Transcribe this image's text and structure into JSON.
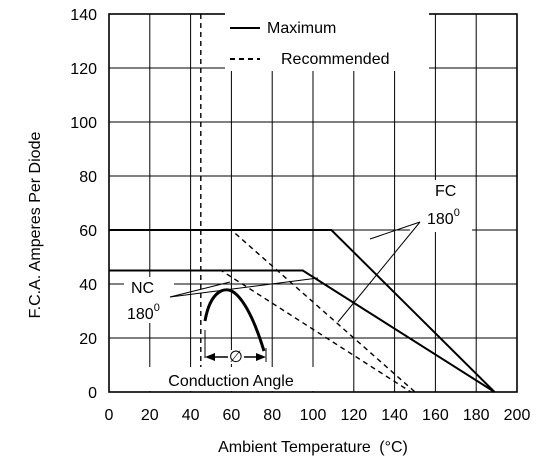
{
  "chart_data": {
    "type": "line",
    "xlabel": "Ambient Temperature",
    "xlabel_unit": "(°C)",
    "ylabel": "F.C.A. Amperes Per Diode",
    "xlim": [
      0,
      200
    ],
    "ylim": [
      0,
      140
    ],
    "xticks": [
      0,
      20,
      40,
      60,
      80,
      100,
      120,
      140,
      160,
      180,
      200
    ],
    "yticks": [
      0,
      20,
      40,
      60,
      80,
      100,
      120,
      140
    ],
    "grid": true,
    "legend": {
      "placement": "top-right",
      "entries": [
        {
          "label": "Maximum",
          "style": "solid"
        },
        {
          "label": "Recommended",
          "style": "dashed"
        }
      ]
    },
    "series": [
      {
        "group": "FC 180°",
        "style": "solid",
        "x": [
          0,
          109,
          189
        ],
        "y": [
          60,
          60,
          0
        ]
      },
      {
        "group": "NC 180°",
        "style": "solid",
        "x": [
          0,
          95,
          189
        ],
        "y": [
          45,
          45,
          0
        ]
      },
      {
        "group": "FC 180°",
        "style": "dashed",
        "x": [
          45,
          60,
          150
        ],
        "y": [
          60,
          60,
          0
        ]
      },
      {
        "group": "NC 180°",
        "style": "dashed",
        "x": [
          45,
          55,
          148
        ],
        "y": [
          45,
          45,
          0
        ]
      }
    ],
    "vertical_line": {
      "x": 45,
      "style": "dashed"
    },
    "annotations": [
      {
        "text": "FC",
        "superscript_text": "180",
        "degree": "0"
      },
      {
        "text": "NC",
        "superscript_text": "180",
        "degree": "0"
      },
      {
        "text": "Conduction Angle",
        "symbol": "∅"
      }
    ]
  }
}
